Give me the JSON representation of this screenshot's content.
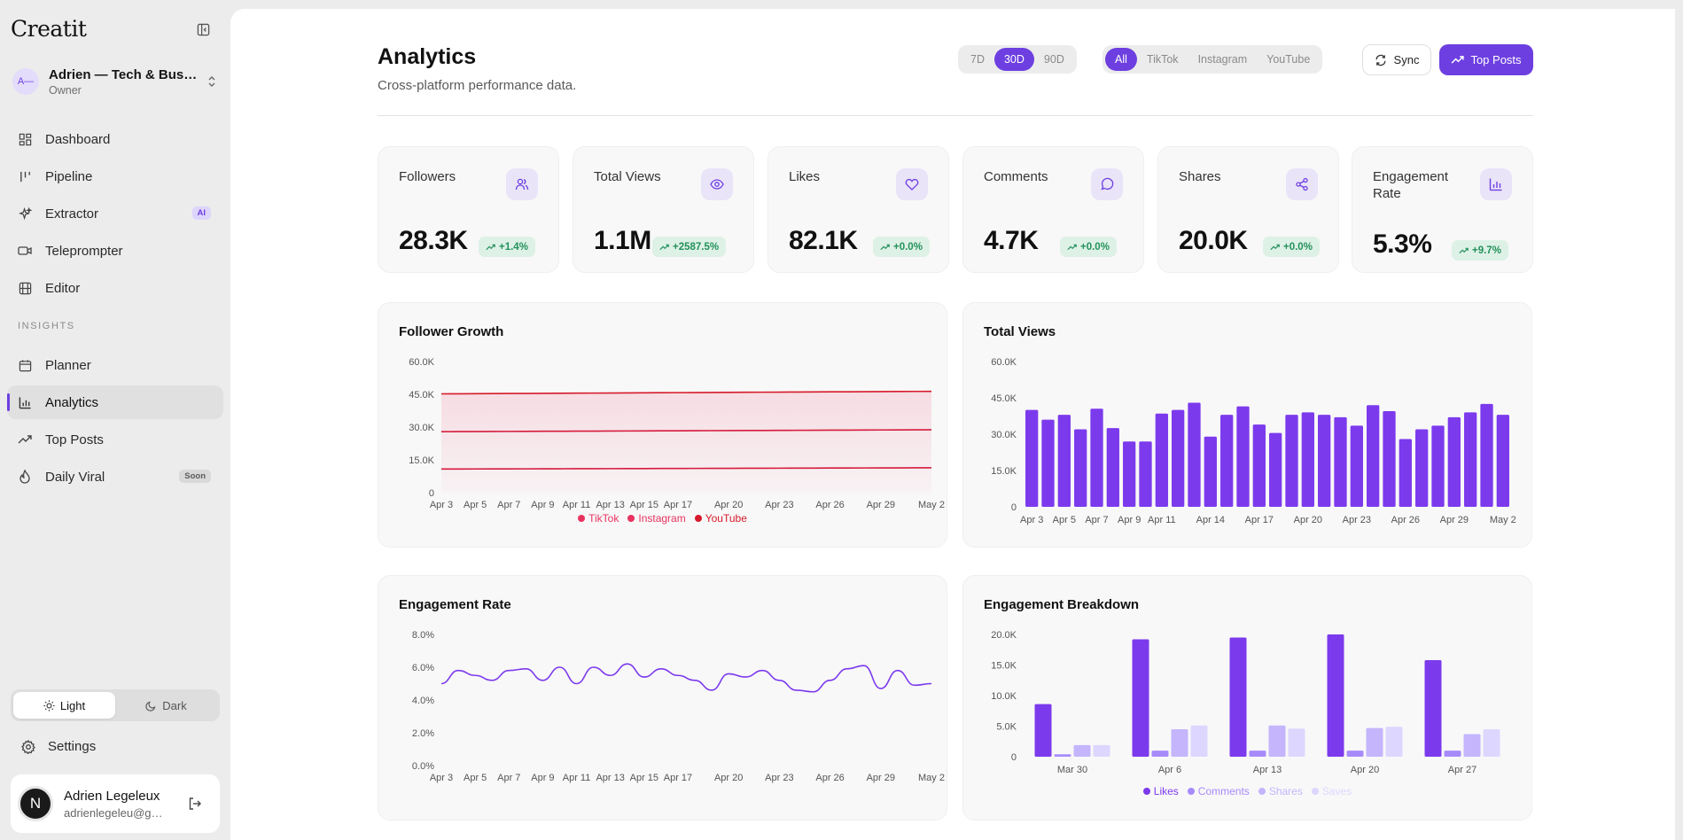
{
  "sidebar": {
    "logo": "Creatit",
    "workspace": {
      "avatar": "A—",
      "name": "Adrien — Tech & Business",
      "role": "Owner"
    },
    "nav": [
      {
        "label": "Dashboard",
        "icon": "dashboard-icon"
      },
      {
        "label": "Pipeline",
        "icon": "pipeline-icon"
      },
      {
        "label": "Extractor",
        "icon": "sparkles-icon",
        "badge": "AI"
      },
      {
        "label": "Teleprompter",
        "icon": "video-icon"
      },
      {
        "label": "Editor",
        "icon": "film-icon"
      }
    ],
    "section_label": "INSIGHTS",
    "insights": [
      {
        "label": "Planner",
        "icon": "calendar-icon"
      },
      {
        "label": "Analytics",
        "icon": "bar-chart-icon",
        "active": true
      },
      {
        "label": "Top Posts",
        "icon": "trending-up-icon"
      },
      {
        "label": "Daily Viral",
        "icon": "flame-icon",
        "badge": "Soon"
      }
    ],
    "theme": {
      "light": "Light",
      "dark": "Dark",
      "active": "light"
    },
    "settings": "Settings",
    "user": {
      "avatar": "N",
      "name": "Adrien Legeleux",
      "email": "adrienlegeleu@gmail.com"
    }
  },
  "header": {
    "title": "Analytics",
    "subtitle": "Cross-platform performance data.",
    "ranges": [
      "7D",
      "30D",
      "90D"
    ],
    "active_range": "30D",
    "platforms": [
      "All",
      "TikTok",
      "Instagram",
      "YouTube"
    ],
    "active_platform": "All",
    "sync_label": "Sync",
    "top_posts_label": "Top Posts"
  },
  "kpis": [
    {
      "label": "Followers",
      "value": "28.3K",
      "delta": "+1.4%",
      "icon": "users-icon"
    },
    {
      "label": "Total Views",
      "value": "1.1M",
      "delta": "+2587.5%",
      "icon": "eye-icon"
    },
    {
      "label": "Likes",
      "value": "82.1K",
      "delta": "+0.0%",
      "icon": "heart-icon"
    },
    {
      "label": "Comments",
      "value": "4.7K",
      "delta": "+0.0%",
      "icon": "message-icon"
    },
    {
      "label": "Shares",
      "value": "20.0K",
      "delta": "+0.0%",
      "icon": "share-icon"
    },
    {
      "label": "Engagement Rate",
      "value": "5.3%",
      "delta": "+9.7%",
      "icon": "bar-chart-icon"
    }
  ],
  "colors": {
    "accent": "#6d3fe0",
    "red": "#d61a3c",
    "pink": "#e8335f",
    "positive": "#23915c"
  },
  "chart_data": [
    {
      "type": "area",
      "title": "Follower Growth",
      "x": [
        "Apr 3",
        "Apr 4",
        "Apr 5",
        "Apr 6",
        "Apr 7",
        "Apr 8",
        "Apr 9",
        "Apr 10",
        "Apr 11",
        "Apr 12",
        "Apr 13",
        "Apr 14",
        "Apr 15",
        "Apr 16",
        "Apr 17",
        "Apr 18",
        "Apr 19",
        "Apr 20",
        "Apr 21",
        "Apr 22",
        "Apr 23",
        "Apr 24",
        "Apr 25",
        "Apr 26",
        "Apr 27",
        "Apr 28",
        "Apr 29",
        "Apr 30",
        "May 1",
        "May 2"
      ],
      "tick_labels": [
        "Apr 3",
        "Apr 5",
        "Apr 7",
        "Apr 9",
        "Apr 11",
        "Apr 13",
        "Apr 15",
        "Apr 17",
        "Apr 20",
        "Apr 23",
        "Apr 26",
        "Apr 29",
        "May 2"
      ],
      "series": [
        {
          "name": "TikTok",
          "values": [
            10800,
            10820,
            10840,
            10860,
            10880,
            10900,
            10920,
            10940,
            10960,
            10980,
            11000,
            11020,
            11040,
            11060,
            11080,
            11100,
            11120,
            11140,
            11160,
            11180,
            11200,
            11220,
            11240,
            11260,
            11280,
            11300,
            11320,
            11340,
            11360,
            11380
          ]
        },
        {
          "name": "Instagram",
          "values": [
            27900,
            27930,
            27960,
            27990,
            28020,
            28050,
            28080,
            28110,
            28140,
            28170,
            28200,
            28230,
            28260,
            28290,
            28320,
            28350,
            28380,
            28410,
            28440,
            28470,
            28500,
            28530,
            28560,
            28590,
            28620,
            28650,
            28680,
            28710,
            28740,
            28770
          ]
        },
        {
          "name": "YouTube",
          "values": [
            45200,
            45240,
            45280,
            45320,
            45360,
            45400,
            45440,
            45480,
            45520,
            45560,
            45600,
            45640,
            45680,
            45720,
            45760,
            45800,
            45840,
            45880,
            45920,
            45960,
            46000,
            46040,
            46080,
            46120,
            46160,
            46200,
            46240,
            46280,
            46320,
            46360
          ]
        }
      ],
      "yticks": [
        "0",
        "15.0K",
        "30.0K",
        "45.0K",
        "60.0K"
      ],
      "ylim": [
        0,
        60000
      ]
    },
    {
      "type": "bar",
      "title": "Total Views",
      "categories": [
        "Apr 3",
        "Apr 4",
        "Apr 5",
        "Apr 6",
        "Apr 7",
        "Apr 8",
        "Apr 9",
        "Apr 10",
        "Apr 11",
        "Apr 12",
        "Apr 13",
        "Apr 14",
        "Apr 15",
        "Apr 16",
        "Apr 17",
        "Apr 18",
        "Apr 19",
        "Apr 20",
        "Apr 21",
        "Apr 22",
        "Apr 23",
        "Apr 24",
        "Apr 25",
        "Apr 26",
        "Apr 27",
        "Apr 28",
        "Apr 29",
        "Apr 30",
        "May 1",
        "May 2"
      ],
      "tick_labels": [
        "Apr 3",
        "Apr 5",
        "Apr 7",
        "Apr 9",
        "Apr 11",
        "Apr 14",
        "Apr 17",
        "Apr 20",
        "Apr 23",
        "Apr 26",
        "Apr 29",
        "May 2"
      ],
      "values": [
        40000,
        36000,
        38000,
        32000,
        40500,
        32500,
        27000,
        27000,
        38500,
        40000,
        43000,
        29000,
        38000,
        41500,
        34000,
        30500,
        38000,
        39000,
        38000,
        37000,
        33500,
        42000,
        39500,
        28000,
        32000,
        33500,
        37000,
        39000,
        42500,
        38000
      ],
      "yticks": [
        "0",
        "15.0K",
        "30.0K",
        "45.0K",
        "60.0K"
      ],
      "ylim": [
        0,
        60000
      ]
    },
    {
      "type": "line",
      "title": "Engagement Rate",
      "x": [
        "Apr 3",
        "Apr 4",
        "Apr 5",
        "Apr 6",
        "Apr 7",
        "Apr 8",
        "Apr 9",
        "Apr 10",
        "Apr 11",
        "Apr 12",
        "Apr 13",
        "Apr 14",
        "Apr 15",
        "Apr 16",
        "Apr 17",
        "Apr 18",
        "Apr 19",
        "Apr 20",
        "Apr 21",
        "Apr 22",
        "Apr 23",
        "Apr 24",
        "Apr 25",
        "Apr 26",
        "Apr 27",
        "Apr 28",
        "Apr 29",
        "Apr 30",
        "May 1",
        "May 2"
      ],
      "tick_labels": [
        "Apr 3",
        "Apr 5",
        "Apr 7",
        "Apr 9",
        "Apr 11",
        "Apr 13",
        "Apr 15",
        "Apr 17",
        "Apr 20",
        "Apr 23",
        "Apr 26",
        "Apr 29",
        "May 2"
      ],
      "values": [
        5.0,
        5.8,
        5.5,
        5.2,
        5.8,
        5.9,
        5.2,
        6.0,
        5.0,
        6.0,
        5.5,
        6.2,
        5.4,
        5.9,
        5.5,
        5.2,
        4.6,
        5.6,
        5.4,
        5.8,
        5.2,
        4.6,
        4.5,
        5.2,
        5.9,
        6.1,
        4.7,
        5.8,
        4.9,
        5.0
      ],
      "yticks": [
        "0.0%",
        "2.0%",
        "4.0%",
        "6.0%",
        "8.0%"
      ],
      "ylim": [
        0,
        8
      ]
    },
    {
      "type": "bar",
      "title": "Engagement Breakdown",
      "categories": [
        "Mar 30",
        "Apr 6",
        "Apr 13",
        "Apr 20",
        "Apr 27"
      ],
      "series": [
        {
          "name": "Likes",
          "values": [
            8600,
            19200,
            19500,
            20000,
            15800
          ]
        },
        {
          "name": "Comments",
          "values": [
            400,
            1000,
            1000,
            1000,
            1000
          ]
        },
        {
          "name": "Shares",
          "values": [
            1900,
            4500,
            5100,
            4700,
            3700
          ]
        },
        {
          "name": "Saves",
          "values": [
            1900,
            5100,
            4600,
            4900,
            4500
          ]
        }
      ],
      "yticks": [
        "0",
        "5.0K",
        "10.0K",
        "15.0K",
        "20.0K"
      ],
      "ylim": [
        0,
        20000
      ]
    }
  ]
}
